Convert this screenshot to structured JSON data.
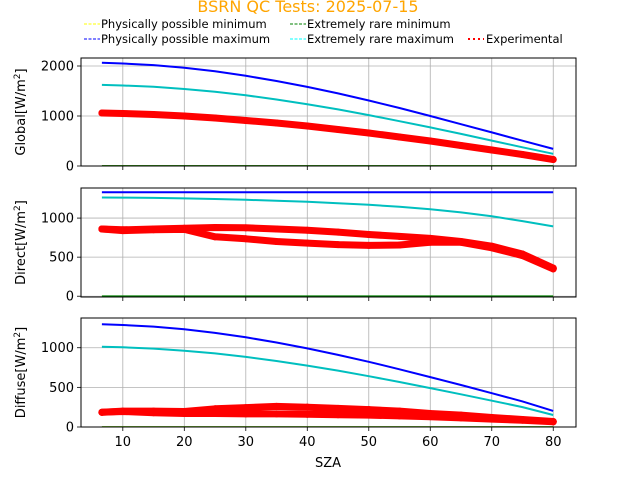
{
  "chart_data": [
    {
      "type": "line",
      "title": "BSRN QC Tests: 2025-07-15",
      "panel": "Global",
      "xlabel": "",
      "ylabel": "Global[W/m2]",
      "ylabel_base": "Global[W/m",
      "xlim": [
        3.2,
        83.7
      ],
      "ylim": [
        0,
        2160
      ],
      "yticks": [
        0,
        1000,
        2000
      ],
      "xticks": [
        10,
        20,
        30,
        40,
        50,
        60,
        70,
        80
      ],
      "grid": true,
      "x": [
        6.6,
        10,
        15,
        20,
        25,
        30,
        35,
        40,
        45,
        50,
        55,
        60,
        65,
        70,
        75,
        80
      ],
      "series": [
        {
          "name": "Physically possible minimum",
          "key": "ppmin",
          "values": [
            -4,
            -4,
            -4,
            -4,
            -4,
            -4,
            -4,
            -4,
            -4,
            -4,
            -4,
            -4,
            -4,
            -4,
            -4,
            -4
          ]
        },
        {
          "name": "Extremely rare minimum",
          "key": "ermin",
          "values": [
            -2,
            -2,
            -2,
            -2,
            -2,
            -2,
            -2,
            -2,
            -2,
            -2,
            -2,
            -2,
            -2,
            -2,
            -2,
            -2
          ]
        },
        {
          "name": "Physically possible maximum",
          "key": "ppmax",
          "values": [
            2065,
            2051,
            2018,
            1964,
            1893,
            1804,
            1700,
            1582,
            1452,
            1310,
            1159,
            1001,
            837,
            671,
            506,
            342
          ]
        },
        {
          "name": "Extremely rare maximum",
          "key": "ermax",
          "values": [
            1622,
            1611,
            1584,
            1541,
            1484,
            1413,
            1330,
            1235,
            1131,
            1018,
            897,
            771,
            641,
            509,
            375,
            243
          ]
        },
        {
          "name": "Experimental",
          "key": "exp",
          "branches": [
            [
              1060,
              1050,
              1030,
              1000,
              960,
              910,
              860,
              800,
              730,
              660,
              580,
              500,
              410,
              320,
              230,
              130
            ]
          ]
        }
      ]
    },
    {
      "type": "line",
      "panel": "Direct",
      "xlabel": "",
      "ylabel": "Direct[W/m2]",
      "ylabel_base": "Direct[W/m",
      "xlim": [
        3.2,
        83.7
      ],
      "ylim": [
        -10,
        1385
      ],
      "yticks": [
        0,
        500,
        1000
      ],
      "xticks": [
        10,
        20,
        30,
        40,
        50,
        60,
        70,
        80
      ],
      "grid": true,
      "x": [
        6.6,
        10,
        15,
        20,
        25,
        30,
        35,
        40,
        45,
        50,
        55,
        60,
        65,
        70,
        75,
        80
      ],
      "series": [
        {
          "name": "Physically possible minimum",
          "key": "ppmin",
          "values": [
            -4,
            -4,
            -4,
            -4,
            -4,
            -4,
            -4,
            -4,
            -4,
            -4,
            -4,
            -4,
            -4,
            -4,
            -4,
            -4
          ]
        },
        {
          "name": "Extremely rare minimum",
          "key": "ermin",
          "values": [
            -2,
            -2,
            -2,
            -2,
            -2,
            -2,
            -2,
            -2,
            -2,
            -2,
            -2,
            -2,
            -2,
            -2,
            -2,
            -2
          ]
        },
        {
          "name": "Physically possible maximum",
          "key": "ppmax",
          "values": [
            1330,
            1330,
            1330,
            1330,
            1330,
            1330,
            1330,
            1330,
            1330,
            1330,
            1330,
            1330,
            1330,
            1330,
            1330,
            1330
          ]
        },
        {
          "name": "Extremely rare maximum",
          "key": "ermax",
          "values": [
            1264,
            1262,
            1258,
            1252,
            1244,
            1234,
            1222,
            1208,
            1191,
            1170,
            1145,
            1113,
            1073,
            1023,
            962,
            893
          ]
        },
        {
          "name": "Experimental",
          "key": "exp",
          "branches": [
            [
              860,
              850,
              860,
              870,
              880,
              875,
              860,
              845,
              820,
              790,
              765,
              740,
              700,
              640,
              540,
              360
            ],
            [
              860,
              840,
              850,
              855,
              760,
              735,
              700,
              680,
              660,
              650,
              655,
              690,
              690,
              620,
              520,
              350
            ]
          ]
        }
      ]
    },
    {
      "type": "line",
      "panel": "Diffuse",
      "xlabel": "SZA",
      "ylabel": "Diffuse[W/m2]",
      "ylabel_base": "Diffuse[W/m",
      "xlim": [
        3.2,
        83.7
      ],
      "ylim": [
        0,
        1375
      ],
      "yticks": [
        0,
        500,
        1000
      ],
      "xticks": [
        10,
        20,
        30,
        40,
        50,
        60,
        70,
        80
      ],
      "xticklabels": [
        "10",
        "20",
        "30",
        "40",
        "50",
        "60",
        "70",
        "80"
      ],
      "grid": true,
      "x": [
        6.6,
        10,
        15,
        20,
        25,
        30,
        35,
        40,
        45,
        50,
        55,
        60,
        65,
        70,
        75,
        80
      ],
      "series": [
        {
          "name": "Physically possible minimum",
          "key": "ppmin",
          "values": [
            -4,
            -4,
            -4,
            -4,
            -4,
            -4,
            -4,
            -4,
            -4,
            -4,
            -4,
            -4,
            -4,
            -4,
            -4,
            -4
          ]
        },
        {
          "name": "Extremely rare minimum",
          "key": "ermin",
          "values": [
            -2,
            -2,
            -2,
            -2,
            -2,
            -2,
            -2,
            -2,
            -2,
            -2,
            -2,
            -2,
            -2,
            -2,
            -2,
            -2
          ]
        },
        {
          "name": "Physically possible maximum",
          "key": "ppmax",
          "values": [
            1296,
            1287,
            1266,
            1232,
            1187,
            1131,
            1066,
            992,
            910,
            822,
            728,
            630,
            530,
            427,
            323,
            203
          ]
        },
        {
          "name": "Extremely rare maximum",
          "key": "ermax",
          "values": [
            1013,
            1006,
            989,
            963,
            928,
            884,
            833,
            775,
            711,
            641,
            568,
            491,
            412,
            332,
            251,
            151
          ]
        },
        {
          "name": "Experimental",
          "key": "exp",
          "branches": [
            [
              185,
              200,
              200,
              195,
              230,
              245,
              260,
              250,
              235,
              220,
              200,
              170,
              150,
              120,
              95,
              70
            ],
            [
              185,
              195,
              180,
              170,
              170,
              165,
              165,
              160,
              155,
              150,
              140,
              130,
              115,
              100,
              85,
              65
            ]
          ]
        }
      ]
    }
  ],
  "legend": {
    "placement": "top",
    "entries": [
      {
        "label": "Physically possible minimum",
        "color": "#ffff00",
        "style": "dashed"
      },
      {
        "label": "Extremely rare minimum",
        "color": "#008000",
        "style": "dashed"
      },
      {
        "label": "Physically possible maximum",
        "color": "#0000ff",
        "style": "dashed"
      },
      {
        "label": "Extremely rare maximum",
        "color": "#00ffff",
        "style": "dashed"
      },
      {
        "label": "Experimental",
        "color": "#ff0000",
        "style": "dotted"
      }
    ]
  },
  "colors": {
    "ppmin": "#ffff00",
    "ermin": "#008000",
    "ppmax": "#0000ff",
    "ermax": "#00bfbf",
    "exp": "#ff0000",
    "title": "#ffa500",
    "grid": "#b0b0b0"
  }
}
